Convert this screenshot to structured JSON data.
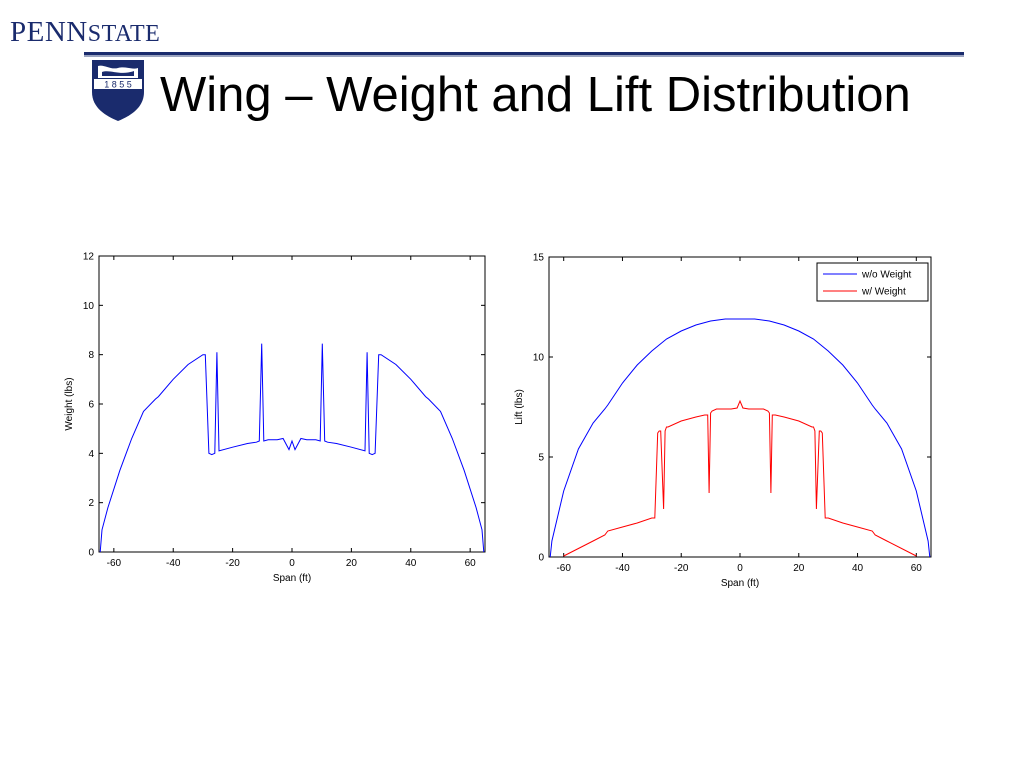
{
  "header": {
    "logo_text": "PENNSTATE",
    "logo_part1": "PENN",
    "logo_part2": "STATE",
    "shield_year": "1 8 5 5",
    "title": "Wing – Weight and Lift Distribution"
  },
  "colors": {
    "brand": "#1a2b6d",
    "blue_series": "#0000ff",
    "red_series": "#ff0000"
  },
  "chart_data": [
    {
      "type": "line",
      "title": "",
      "xlabel": "Span (ft)",
      "ylabel": "Weight (lbs)",
      "xlim": [
        -65,
        65
      ],
      "ylim": [
        0,
        12
      ],
      "xticks": [
        -60,
        -40,
        -20,
        0,
        20,
        40,
        60
      ],
      "yticks": [
        0,
        2,
        4,
        6,
        8,
        10,
        12
      ],
      "grid": false,
      "series": [
        {
          "color": "#0000ff",
          "x": [
            -64.6,
            -64,
            -62,
            -58,
            -54,
            -50,
            -46,
            -45,
            -40,
            -35,
            -30,
            -29.2,
            -28,
            -27,
            -26,
            -25.3,
            -24.6,
            -20,
            -15,
            -12,
            -11,
            -10.2,
            -9.5,
            -8,
            -5,
            -3,
            -1,
            0,
            1,
            3,
            5,
            8,
            9.5,
            10.2,
            11,
            12,
            15,
            20,
            24.6,
            25.3,
            26,
            27,
            28,
            29.2,
            30,
            35,
            40,
            45,
            46,
            50,
            54,
            58,
            62,
            64,
            64.6
          ],
          "y": [
            0,
            0.9,
            1.8,
            3.3,
            4.6,
            5.7,
            6.2,
            6.3,
            7.0,
            7.6,
            8.0,
            8.0,
            4.0,
            3.95,
            4.0,
            8.1,
            4.1,
            4.25,
            4.4,
            4.45,
            4.5,
            8.45,
            4.5,
            4.55,
            4.55,
            4.6,
            4.15,
            4.5,
            4.15,
            4.6,
            4.55,
            4.55,
            4.5,
            8.45,
            4.5,
            4.45,
            4.4,
            4.25,
            4.1,
            8.1,
            4.0,
            3.95,
            4.0,
            8.0,
            8.0,
            7.6,
            7.0,
            6.3,
            6.2,
            5.7,
            4.6,
            3.3,
            1.8,
            0.9,
            0
          ]
        }
      ]
    },
    {
      "type": "line",
      "title": "",
      "xlabel": "Span (ft)",
      "ylabel": "Lift (lbs)",
      "xlim": [
        -65,
        65
      ],
      "ylim": [
        0,
        15
      ],
      "xticks": [
        -60,
        -40,
        -20,
        0,
        20,
        40,
        60
      ],
      "yticks": [
        0,
        5,
        10,
        15
      ],
      "grid": false,
      "legend": "top-right",
      "series": [
        {
          "name": "w/o Weight",
          "color": "#0000ff",
          "x": [
            -64.6,
            -64,
            -60,
            -55,
            -50,
            -46,
            -45,
            -40,
            -35,
            -30,
            -25,
            -20,
            -15,
            -10,
            -5,
            0,
            5,
            10,
            15,
            20,
            25,
            30,
            35,
            40,
            45,
            46,
            50,
            55,
            60,
            64,
            64.6
          ],
          "y": [
            0,
            0.8,
            3.3,
            5.4,
            6.7,
            7.4,
            7.6,
            8.7,
            9.6,
            10.3,
            10.9,
            11.3,
            11.6,
            11.8,
            11.9,
            11.9,
            11.9,
            11.8,
            11.6,
            11.3,
            10.9,
            10.3,
            9.6,
            8.7,
            7.6,
            7.4,
            6.7,
            5.4,
            3.3,
            0.8,
            0
          ]
        },
        {
          "name": "w/ Weight",
          "color": "#ff0000",
          "x": [
            -60,
            -50,
            -46,
            -45,
            -40,
            -35,
            -30,
            -29,
            -28,
            -27.5,
            -27,
            -26,
            -25.5,
            -25,
            -24.5,
            -20,
            -15,
            -12,
            -11,
            -10.5,
            -10,
            -9.5,
            -8,
            -5,
            -3,
            -1,
            0,
            1,
            3,
            5,
            8,
            9.5,
            10,
            10.5,
            11,
            12,
            15,
            20,
            24.5,
            25,
            25.5,
            26,
            27,
            27.5,
            28,
            29,
            30,
            35,
            40,
            45,
            46,
            50,
            60
          ],
          "y": [
            0.05,
            0.8,
            1.1,
            1.3,
            1.5,
            1.7,
            1.95,
            1.95,
            6.2,
            6.3,
            6.3,
            2.4,
            6.3,
            6.5,
            6.5,
            6.8,
            7.0,
            7.1,
            7.1,
            3.2,
            7.2,
            7.3,
            7.4,
            7.4,
            7.4,
            7.45,
            7.8,
            7.45,
            7.4,
            7.4,
            7.4,
            7.3,
            7.2,
            3.2,
            7.1,
            7.1,
            7.0,
            6.8,
            6.5,
            6.5,
            6.3,
            2.4,
            6.3,
            6.3,
            6.2,
            1.95,
            1.95,
            1.7,
            1.5,
            1.3,
            1.1,
            0.8,
            0.05
          ]
        }
      ]
    }
  ]
}
